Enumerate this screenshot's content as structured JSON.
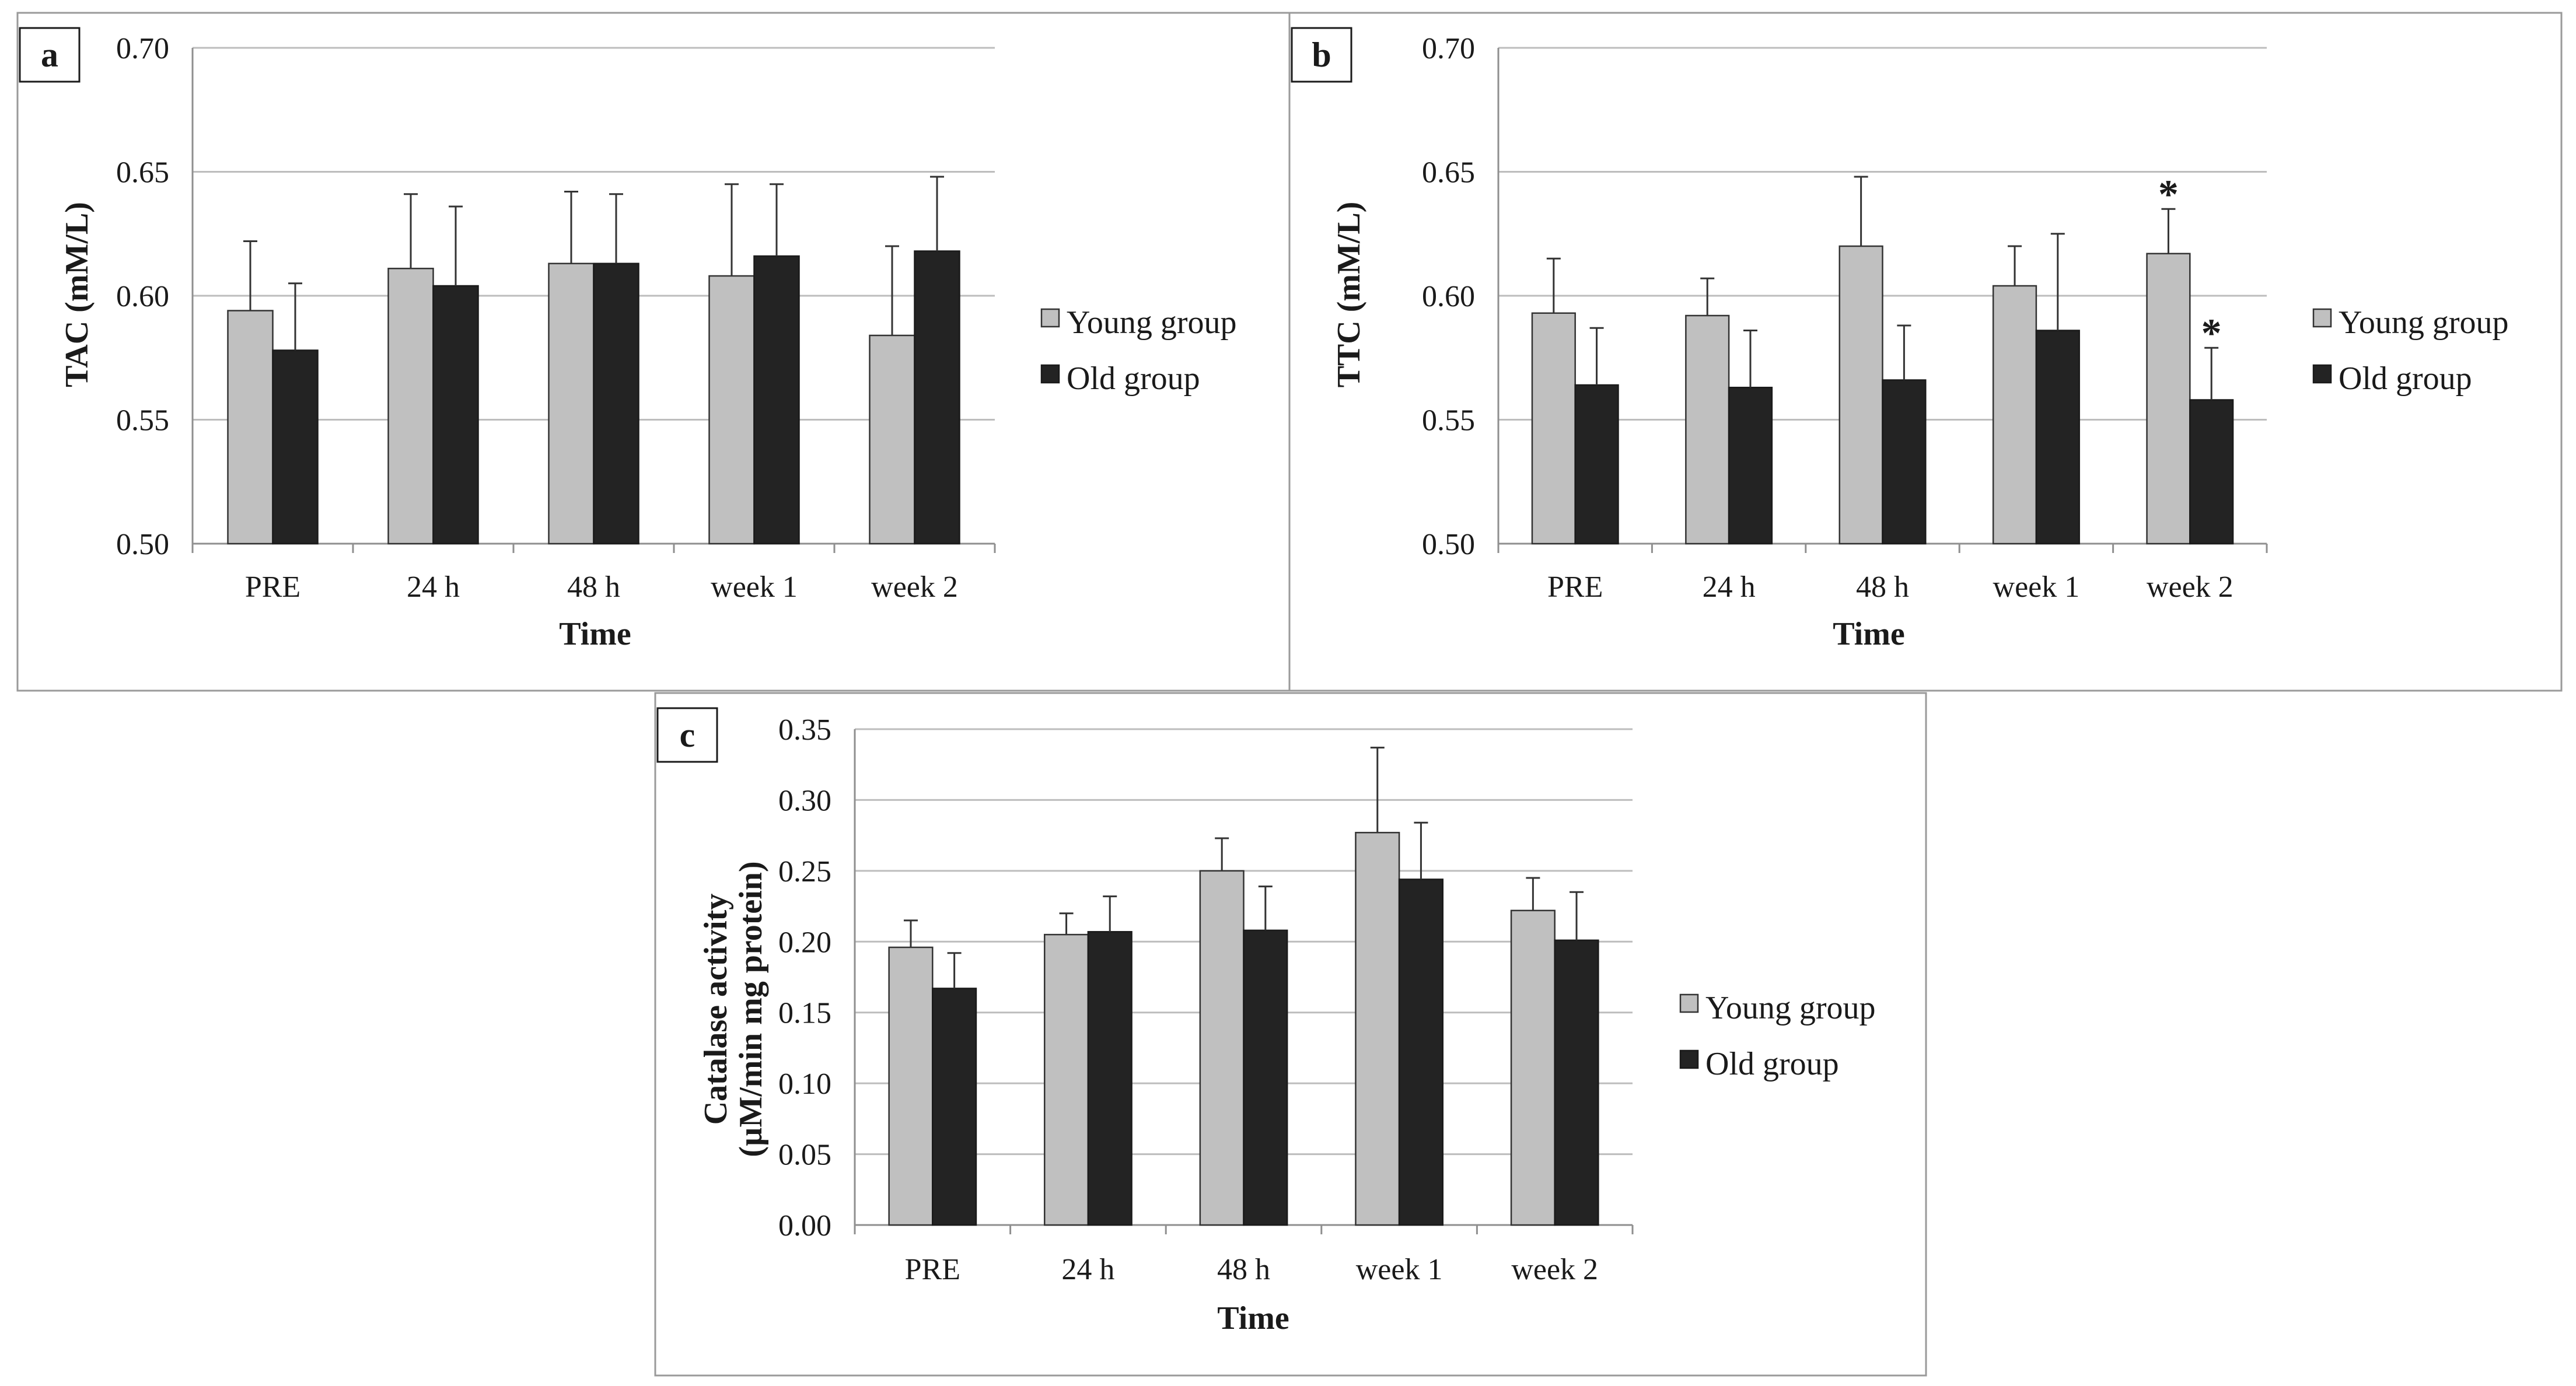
{
  "colors": {
    "young": "#c0c0c0",
    "old": "#232323"
  },
  "legend": {
    "young": "Young group",
    "old": "Old group"
  },
  "chart_data": [
    {
      "panel": "a",
      "type": "bar",
      "title": "",
      "xlabel": "Time",
      "ylabel": "TAC (mM/L)",
      "ylim": [
        0.5,
        0.7
      ],
      "yticks": [
        "0.50",
        "0.55",
        "0.60",
        "0.65",
        "0.70"
      ],
      "categories": [
        "PRE",
        "24 h",
        "48 h",
        "week 1",
        "week 2"
      ],
      "series": [
        {
          "name": "Young group",
          "values": [
            0.594,
            0.611,
            0.613,
            0.608,
            0.584
          ],
          "errors": [
            0.028,
            0.03,
            0.029,
            0.037,
            0.036
          ],
          "stars": [
            false,
            false,
            false,
            false,
            false
          ]
        },
        {
          "name": "Old group",
          "values": [
            0.578,
            0.604,
            0.613,
            0.616,
            0.618
          ],
          "errors": [
            0.027,
            0.032,
            0.028,
            0.029,
            0.03
          ],
          "stars": [
            false,
            false,
            false,
            false,
            false
          ]
        }
      ]
    },
    {
      "panel": "b",
      "type": "bar",
      "title": "",
      "xlabel": "Time",
      "ylabel": "TTC (mM/L)",
      "ylim": [
        0.5,
        0.7
      ],
      "yticks": [
        "0.50",
        "0.55",
        "0.60",
        "0.65",
        "0.70"
      ],
      "categories": [
        "PRE",
        "24 h",
        "48 h",
        "week 1",
        "week 2"
      ],
      "series": [
        {
          "name": "Young group",
          "values": [
            0.593,
            0.592,
            0.62,
            0.604,
            0.617
          ],
          "errors": [
            0.022,
            0.015,
            0.028,
            0.016,
            0.018
          ],
          "stars": [
            false,
            false,
            false,
            false,
            true
          ]
        },
        {
          "name": "Old group",
          "values": [
            0.564,
            0.563,
            0.566,
            0.586,
            0.558
          ],
          "errors": [
            0.023,
            0.023,
            0.022,
            0.039,
            0.021
          ],
          "stars": [
            false,
            false,
            false,
            false,
            true
          ]
        }
      ],
      "annotations": [
        "*",
        "*"
      ]
    },
    {
      "panel": "c",
      "type": "bar",
      "title": "",
      "xlabel": "Time",
      "ylabel": "Catalase activity",
      "ylabel2": "(µM/min mg protein)",
      "ylim": [
        0,
        0.35
      ],
      "yticks": [
        "0.00",
        "0.05",
        "0.10",
        "0.15",
        "0.20",
        "0.25",
        "0.30",
        "0.35"
      ],
      "categories": [
        "PRE",
        "24 h",
        "48 h",
        "week 1",
        "week 2"
      ],
      "series": [
        {
          "name": "Young group",
          "values": [
            0.196,
            0.205,
            0.25,
            0.277,
            0.222
          ],
          "errors": [
            0.019,
            0.015,
            0.023,
            0.06,
            0.023
          ],
          "stars": [
            false,
            false,
            false,
            false,
            false
          ]
        },
        {
          "name": "Old group",
          "values": [
            0.167,
            0.207,
            0.208,
            0.244,
            0.201
          ],
          "errors": [
            0.025,
            0.025,
            0.031,
            0.04,
            0.034
          ],
          "stars": [
            false,
            false,
            false,
            false,
            false
          ]
        }
      ]
    }
  ]
}
